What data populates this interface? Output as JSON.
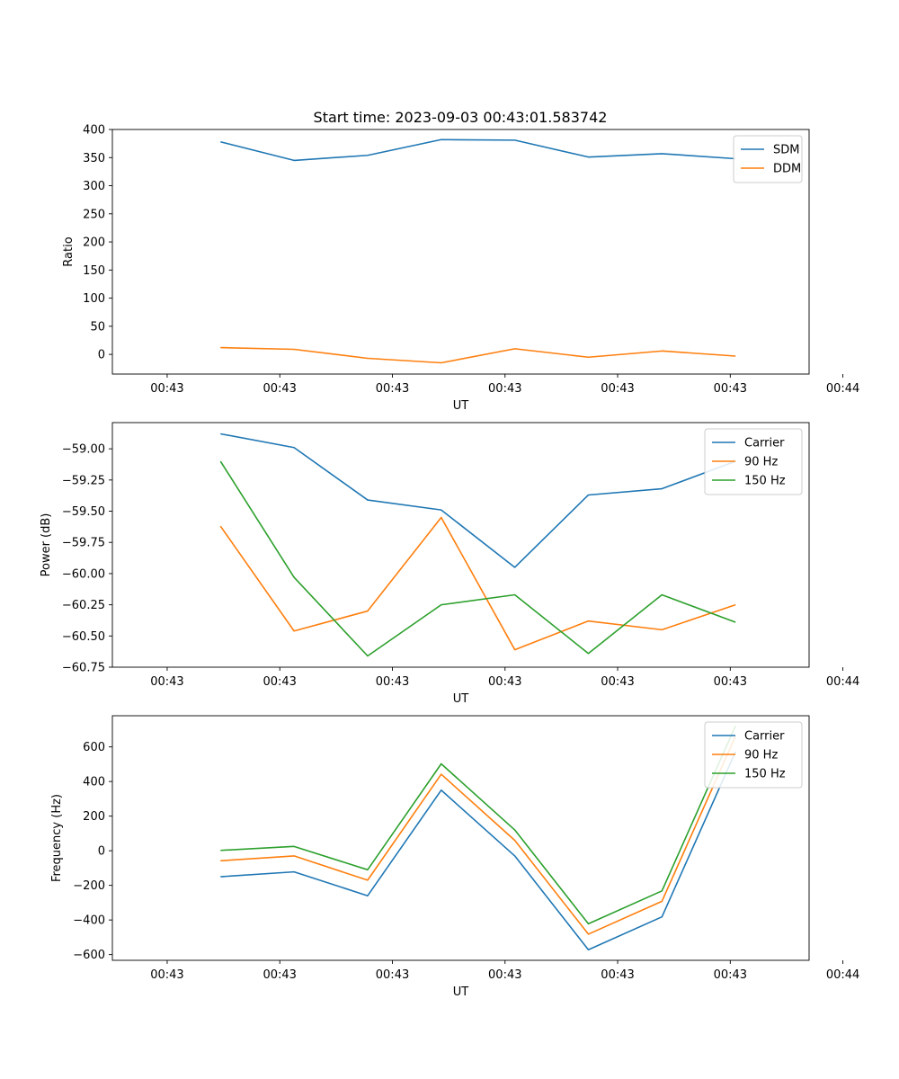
{
  "figure": {
    "title": "Start time: 2023-09-03 00:43:01.583742"
  },
  "chart_data": [
    {
      "type": "line",
      "name": "ratio-chart",
      "title": "",
      "xlabel": "UT",
      "ylabel": "Ratio",
      "xlim": [
        -0.73,
        8.55
      ],
      "x_ticks": [
        0,
        1.5,
        3,
        4.5,
        6,
        7.5,
        9
      ],
      "x_tick_labels": [
        "00:43",
        "00:43",
        "00:43",
        "00:43",
        "00:43",
        "00:43",
        "00:44"
      ],
      "ylim": [
        -35,
        400
      ],
      "y_ticks": [
        0,
        50,
        100,
        150,
        200,
        250,
        300,
        350,
        400
      ],
      "y_tick_labels": [
        "0",
        "50",
        "100",
        "150",
        "200",
        "250",
        "300",
        "350",
        "400"
      ],
      "x": [
        0.71,
        1.69,
        2.67,
        3.65,
        4.63,
        5.61,
        6.59,
        7.57
      ],
      "series": [
        {
          "name": "SDM",
          "color": "#1f77b4",
          "values": [
            378,
            345,
            354,
            382,
            381,
            351,
            357,
            348
          ]
        },
        {
          "name": "DDM",
          "color": "#ff7f0e",
          "values": [
            12,
            9,
            -7,
            -15,
            10,
            -5,
            6,
            -3
          ]
        }
      ],
      "legend": "top-right"
    },
    {
      "type": "line",
      "name": "power-chart",
      "title": "",
      "xlabel": "UT",
      "ylabel": "Power (dB)",
      "xlim": [
        -0.73,
        8.55
      ],
      "x_ticks": [
        0,
        1.5,
        3,
        4.5,
        6,
        7.5,
        9
      ],
      "x_tick_labels": [
        "00:43",
        "00:43",
        "00:43",
        "00:43",
        "00:43",
        "00:43",
        "00:44"
      ],
      "ylim": [
        -60.75,
        -58.79
      ],
      "y_ticks": [
        -60.75,
        -60.5,
        -60.25,
        -60.0,
        -59.75,
        -59.5,
        -59.25,
        -59.0
      ],
      "y_tick_labels": [
        "−60.75",
        "−60.50",
        "−60.25",
        "−60.00",
        "−59.75",
        "−59.50",
        "−59.25",
        "−59.00"
      ],
      "x": [
        0.71,
        1.69,
        2.67,
        3.65,
        4.63,
        5.61,
        6.59,
        7.57
      ],
      "series": [
        {
          "name": "Carrier",
          "color": "#1f77b4",
          "values": [
            -58.88,
            -58.99,
            -59.41,
            -59.49,
            -59.95,
            -59.37,
            -59.32,
            -59.1
          ]
        },
        {
          "name": "90 Hz",
          "color": "#ff7f0e",
          "values": [
            -59.62,
            -60.46,
            -60.3,
            -59.55,
            -60.61,
            -60.38,
            -60.45,
            -60.25
          ]
        },
        {
          "name": "150 Hz",
          "color": "#2ca02c",
          "values": [
            -59.1,
            -60.03,
            -60.66,
            -60.25,
            -60.17,
            -60.64,
            -60.17,
            -60.39
          ]
        }
      ],
      "legend": "top-right"
    },
    {
      "type": "line",
      "name": "frequency-chart",
      "title": "",
      "xlabel": "UT",
      "ylabel": "Frequency (Hz)",
      "xlim": [
        -0.73,
        8.55
      ],
      "x_ticks": [
        0,
        1.5,
        3,
        4.5,
        6,
        7.5,
        9
      ],
      "x_tick_labels": [
        "00:43",
        "00:43",
        "00:43",
        "00:43",
        "00:43",
        "00:43",
        "00:44"
      ],
      "ylim": [
        -633,
        780
      ],
      "y_ticks": [
        -600,
        -400,
        -200,
        0,
        200,
        400,
        600
      ],
      "y_tick_labels": [
        "−600",
        "−400",
        "−200",
        "0",
        "200",
        "400",
        "600"
      ],
      "x": [
        0.71,
        1.69,
        2.67,
        3.65,
        4.63,
        5.61,
        6.59,
        7.57
      ],
      "series": [
        {
          "name": "Carrier",
          "color": "#1f77b4",
          "values": [
            -150,
            -122,
            -260,
            350,
            -30,
            -572,
            -382,
            572
          ]
        },
        {
          "name": "90 Hz",
          "color": "#ff7f0e",
          "values": [
            -58,
            -30,
            -170,
            442,
            60,
            -482,
            -292,
            662
          ]
        },
        {
          "name": "150 Hz",
          "color": "#2ca02c",
          "values": [
            2,
            25,
            -110,
            502,
            120,
            -422,
            -232,
            722
          ]
        }
      ],
      "legend": "top-right"
    }
  ]
}
